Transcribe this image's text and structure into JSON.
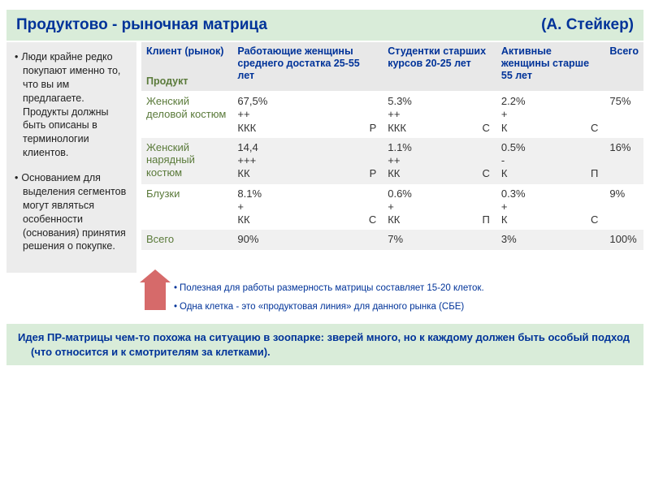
{
  "title": {
    "left": "Продуктово - рыночная матрица",
    "right": "(А. Стейкер)"
  },
  "sidebar": {
    "bullets": [
      "Люди крайне редко покупают именно то, что вы им предлагаете. Продукты должны быть описаны в терминологии клиентов.",
      "Основанием для выделения сегментов могут являться особенности (основания) принятия решения о покупке."
    ]
  },
  "table": {
    "corner_top": "Клиент (рынок)",
    "corner_bottom": "Продукт",
    "columns": [
      "Работающие женщины среднего достатка 25-55 лет",
      "Студентки старших курсов 20-25 лет",
      "Активные женщины старше 55 лет",
      "Всего"
    ],
    "rows": [
      {
        "label": "Женский деловой костюм",
        "cells": [
          {
            "pct": "67,5%",
            "plus": "++",
            "k": "ККК",
            "tag": "Р"
          },
          {
            "pct": "5.3%",
            "plus": "++",
            "k": "ККК",
            "tag": "С"
          },
          {
            "pct": "2.2%",
            "plus": "+",
            "k": "К",
            "tag": "С"
          }
        ],
        "total": "75%"
      },
      {
        "label": "Женский нарядный костюм",
        "cells": [
          {
            "pct": "14,4",
            "plus": "+++",
            "k": "КК",
            "tag": "Р"
          },
          {
            "pct": "1.1%",
            "plus": "++",
            "k": "КК",
            "tag": "С"
          },
          {
            "pct": "0.5%",
            "plus": "-",
            "k": "К",
            "tag": "П"
          }
        ],
        "total": "16%"
      },
      {
        "label": "Блузки",
        "cells": [
          {
            "pct": "8.1%",
            "plus": "+",
            "k": "КК",
            "tag": "С"
          },
          {
            "pct": "0.6%",
            "plus": "+",
            "k": "КК",
            "tag": "П"
          },
          {
            "pct": "0.3%",
            "plus": "+",
            "k": "К",
            "tag": "С"
          }
        ],
        "total": "9%"
      }
    ],
    "totals_row": {
      "label": "Всего",
      "values": [
        "90%",
        "7%",
        "3%",
        "100%"
      ]
    }
  },
  "notes": [
    "Полезная для работы размерность матрицы составляет 15-20 клеток.",
    "Одна клетка - это «продуктовая линия» для данного рынка (СБЕ)"
  ],
  "footer": "Идея ПР-матрицы чем-то похожа на ситуацию в зоопарке: зверей много, но к каждому должен быть особый подход (что относится и к смотрителям за клетками).",
  "colors": {
    "title_bg": "#d9ecd9",
    "header_text": "#003399",
    "product_text": "#5a7a3a",
    "sidebar_bg": "#ececec",
    "shade_bg": "#f0f0f0",
    "arrow": "#d66a6a"
  }
}
